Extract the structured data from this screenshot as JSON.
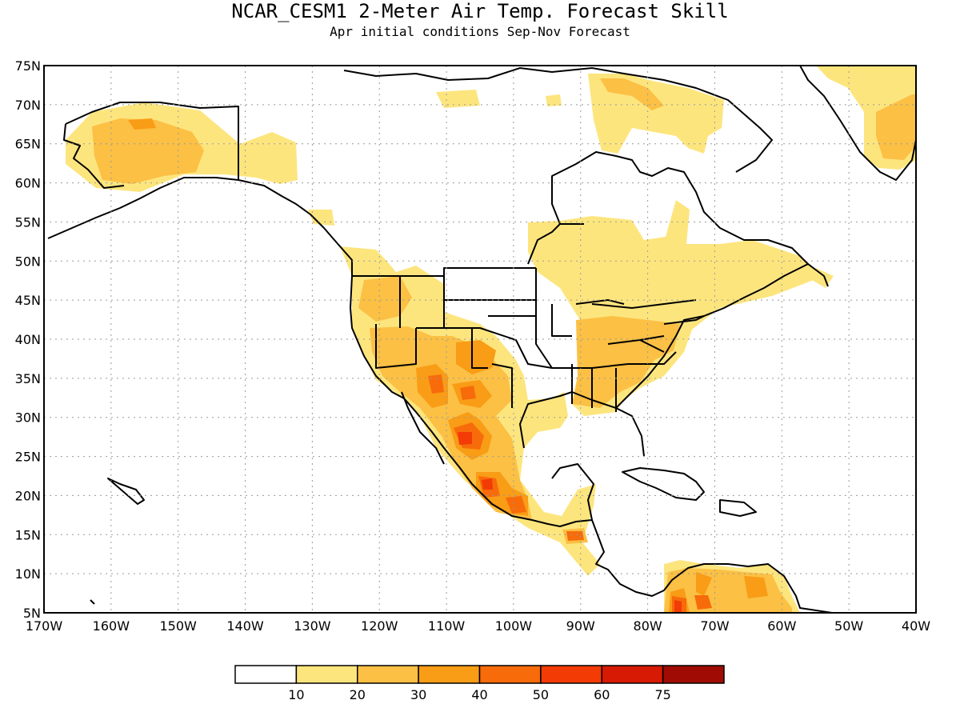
{
  "title": "NCAR_CESM1 2-Meter Air Temp. Forecast Skill",
  "subtitle": "Apr initial conditions  Sep-Nov Forecast",
  "map": {
    "lon_range": [
      -170,
      -40
    ],
    "lat_range": [
      5,
      75
    ],
    "lat_ticks": [
      {
        "value": 75,
        "label": "75N"
      },
      {
        "value": 70,
        "label": "70N"
      },
      {
        "value": 65,
        "label": "65N"
      },
      {
        "value": 60,
        "label": "60N"
      },
      {
        "value": 55,
        "label": "55N"
      },
      {
        "value": 50,
        "label": "50N"
      },
      {
        "value": 45,
        "label": "45N"
      },
      {
        "value": 40,
        "label": "40N"
      },
      {
        "value": 35,
        "label": "35N"
      },
      {
        "value": 30,
        "label": "30N"
      },
      {
        "value": 25,
        "label": "25N"
      },
      {
        "value": 20,
        "label": "20N"
      },
      {
        "value": 15,
        "label": "15N"
      },
      {
        "value": 10,
        "label": "10N"
      },
      {
        "value": 5,
        "label": "5N"
      }
    ],
    "lon_ticks": [
      {
        "value": -170,
        "label": "170W"
      },
      {
        "value": -160,
        "label": "160W"
      },
      {
        "value": -150,
        "label": "150W"
      },
      {
        "value": -140,
        "label": "140W"
      },
      {
        "value": -130,
        "label": "130W"
      },
      {
        "value": -120,
        "label": "120W"
      },
      {
        "value": -110,
        "label": "110W"
      },
      {
        "value": -100,
        "label": "100W"
      },
      {
        "value": -90,
        "label": "90W"
      },
      {
        "value": -80,
        "label": "80W"
      },
      {
        "value": -70,
        "label": "70W"
      },
      {
        "value": -60,
        "label": "60W"
      },
      {
        "value": -50,
        "label": "50W"
      },
      {
        "value": -40,
        "label": "40W"
      }
    ],
    "grid": true
  },
  "colorbar": {
    "colors": [
      "#ffffff",
      "#fde57e",
      "#fbc044",
      "#f99c16",
      "#f76b0a",
      "#f33b06",
      "#d61a03",
      "#a00c03"
    ],
    "labels": [
      "10",
      "20",
      "30",
      "40",
      "50",
      "60",
      "75"
    ]
  },
  "colors": {
    "c1": "#fde57e",
    "c2": "#fbc044",
    "c3": "#f99c16",
    "c4": "#f76b0a",
    "c5": "#f33b06",
    "c6": "#d61a03"
  }
}
